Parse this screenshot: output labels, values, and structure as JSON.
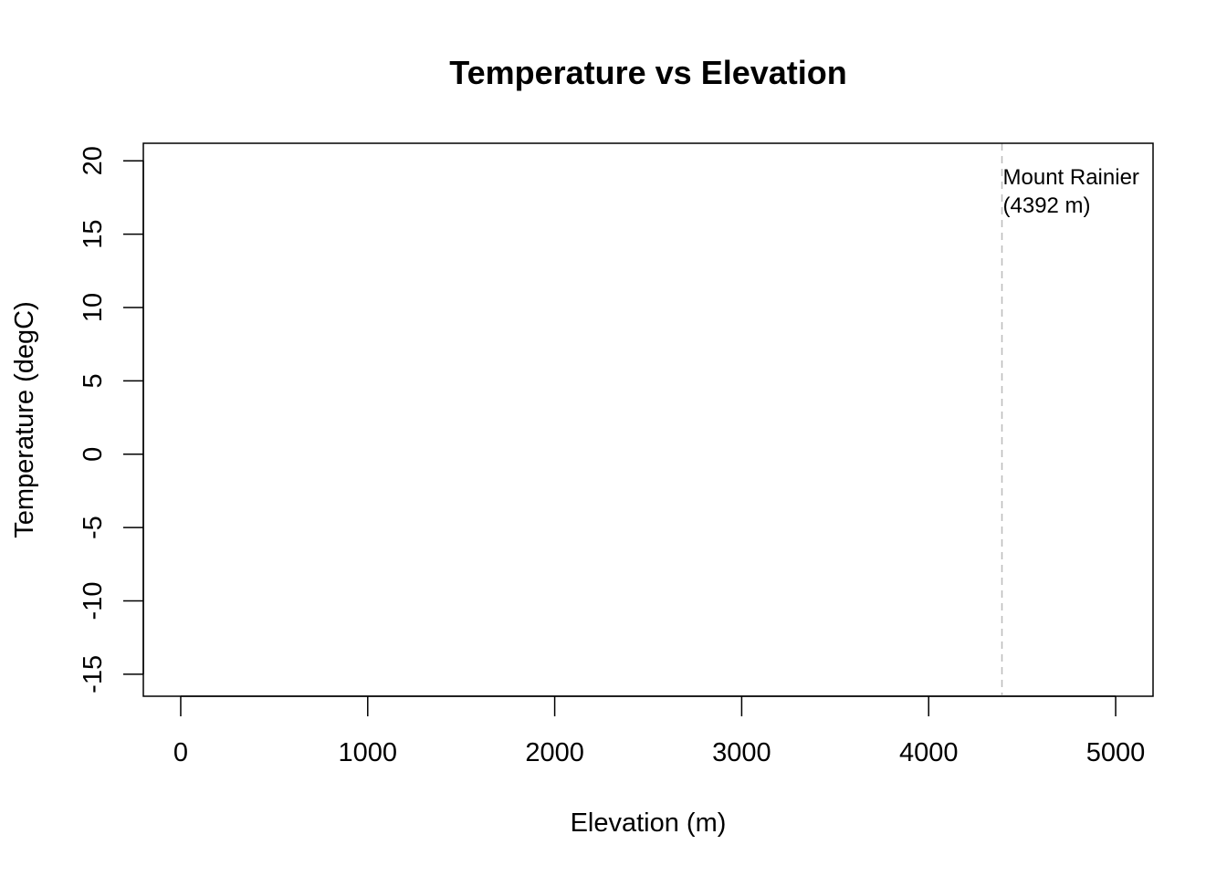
{
  "chart_data": {
    "type": "scatter",
    "title": "Temperature vs Elevation",
    "xlabel": "Elevation (m)",
    "ylabel": "Temperature (degC)",
    "xlim": [
      -200,
      5200
    ],
    "ylim": [
      -16.5,
      21.2
    ],
    "x_ticks": [
      0,
      1000,
      2000,
      3000,
      4000,
      5000
    ],
    "y_ticks": [
      -15,
      -10,
      -5,
      0,
      5,
      10,
      15,
      20
    ],
    "x_tick_labels": [
      "0",
      "1000",
      "2000",
      "3000",
      "4000",
      "5000"
    ],
    "y_tick_labels": [
      "-15",
      "-10",
      "-5",
      "0",
      "5",
      "10",
      "15",
      "20"
    ],
    "series": [],
    "grid": false,
    "reference_lines": [
      {
        "orientation": "vertical",
        "x": 4392,
        "style": "dashed",
        "color": "#bbbbbb",
        "label_lines": [
          "Mount Rainier",
          "(4392 m)"
        ]
      }
    ],
    "colors": {
      "axis": "#000000",
      "reference_line": "#bbbbbb"
    }
  }
}
